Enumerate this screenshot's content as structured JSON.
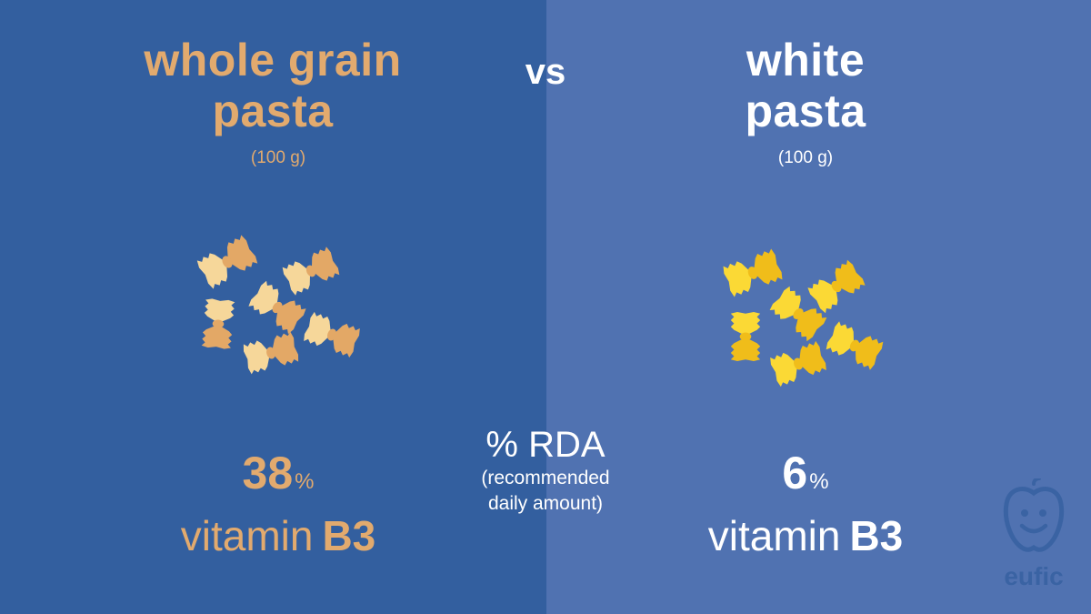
{
  "left": {
    "title_line1": "whole grain",
    "title_line2": "pasta",
    "portion": "(100 g)",
    "percent": "38",
    "percent_unit": "%",
    "vitamin_word": "vitamin",
    "vitamin_name": "B3",
    "pasta_icon": "farfalle-whole-grain-icon",
    "colors": {
      "background": "#335f9f",
      "text": "#e2aa6e",
      "pasta_light": "#f6d79a",
      "pasta_dark": "#e3a866"
    }
  },
  "center": {
    "vs": "vs",
    "rda_title": "% RDA",
    "rda_line1": "(recommended",
    "rda_line2": "daily amount)"
  },
  "right": {
    "title_line1": "white",
    "title_line2": "pasta",
    "portion": "(100 g)",
    "percent": "6",
    "percent_unit": "%",
    "vitamin_word": "vitamin",
    "vitamin_name": "B3",
    "pasta_icon": "farfalle-white-icon",
    "colors": {
      "background": "#5072b1",
      "text": "#ffffff",
      "pasta_light": "#fbd935",
      "pasta_dark": "#f0bd1a"
    }
  },
  "logo": {
    "text": "eufic",
    "icon": "eufic-apple-face-icon",
    "color": "#3a63a3"
  }
}
